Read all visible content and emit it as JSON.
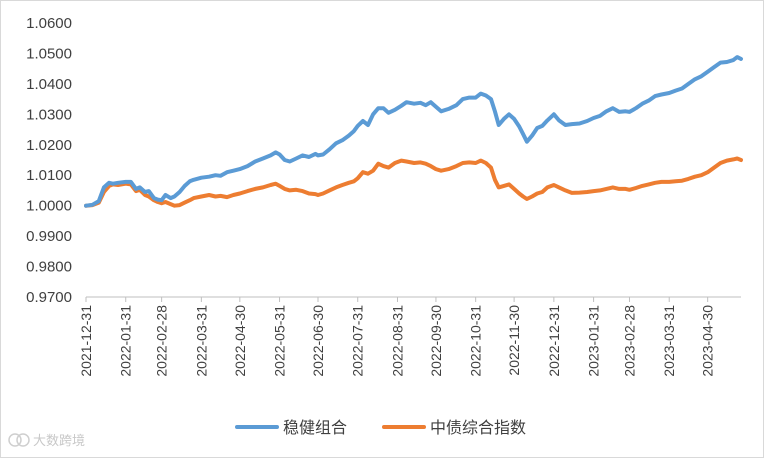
{
  "chart_data": {
    "type": "line",
    "title": "",
    "xlabel": "",
    "ylabel": "",
    "ylim": [
      0.97,
      1.06
    ],
    "y_ticks": [
      "1.0600",
      "1.0500",
      "1.0400",
      "1.0300",
      "1.0200",
      "1.0100",
      "1.0000",
      "0.9900",
      "0.9800",
      "0.9700"
    ],
    "y_tick_values": [
      1.06,
      1.05,
      1.04,
      1.03,
      1.02,
      1.01,
      1.0,
      0.99,
      0.98,
      0.97
    ],
    "x_ticks": [
      "2021-12-31",
      "2022-01-31",
      "2022-02-28",
      "2022-03-31",
      "2022-04-30",
      "2022-05-31",
      "2022-06-30",
      "2022-07-31",
      "2022-08-31",
      "2022-09-30",
      "2022-10-31",
      "2022-11-30",
      "2022-12-31",
      "2023-01-31",
      "2023-02-28",
      "2023-03-31",
      "2023-04-30"
    ],
    "x_end": "2023-05-26",
    "grid": false,
    "legend_position": "bottom",
    "series": [
      {
        "name": "稳健组合",
        "color": "#5b9bd5",
        "points": [
          [
            "2021-12-31",
            1.0
          ],
          [
            "2022-01-05",
            1.0003
          ],
          [
            "2022-01-10",
            1.0015
          ],
          [
            "2022-01-14",
            1.006
          ],
          [
            "2022-01-18",
            1.0075
          ],
          [
            "2022-01-21",
            1.0072
          ],
          [
            "2022-01-25",
            1.0075
          ],
          [
            "2022-01-31",
            1.0078
          ],
          [
            "2022-02-04",
            1.0078
          ],
          [
            "2022-02-08",
            1.0055
          ],
          [
            "2022-02-11",
            1.006
          ],
          [
            "2022-02-15",
            1.0045
          ],
          [
            "2022-02-18",
            1.0048
          ],
          [
            "2022-02-22",
            1.0025
          ],
          [
            "2022-02-25",
            1.002
          ],
          [
            "2022-02-28",
            1.0018
          ],
          [
            "2022-03-03",
            1.0035
          ],
          [
            "2022-03-07",
            1.0025
          ],
          [
            "2022-03-10",
            1.003
          ],
          [
            "2022-03-14",
            1.0045
          ],
          [
            "2022-03-18",
            1.0065
          ],
          [
            "2022-03-22",
            1.008
          ],
          [
            "2022-03-25",
            1.0085
          ],
          [
            "2022-03-31",
            1.0092
          ],
          [
            "2022-04-06",
            1.0095
          ],
          [
            "2022-04-11",
            1.01
          ],
          [
            "2022-04-15",
            1.0098
          ],
          [
            "2022-04-20",
            1.011
          ],
          [
            "2022-04-25",
            1.0115
          ],
          [
            "2022-04-30",
            1.012
          ],
          [
            "2022-05-06",
            1.013
          ],
          [
            "2022-05-12",
            1.0145
          ],
          [
            "2022-05-18",
            1.0155
          ],
          [
            "2022-05-24",
            1.0165
          ],
          [
            "2022-05-28",
            1.0175
          ],
          [
            "2022-05-31",
            1.0168
          ],
          [
            "2022-06-04",
            1.015
          ],
          [
            "2022-06-08",
            1.0145
          ],
          [
            "2022-06-13",
            1.0155
          ],
          [
            "2022-06-18",
            1.0165
          ],
          [
            "2022-06-23",
            1.016
          ],
          [
            "2022-06-28",
            1.017
          ],
          [
            "2022-06-30",
            1.0165
          ],
          [
            "2022-07-04",
            1.0168
          ],
          [
            "2022-07-09",
            1.0185
          ],
          [
            "2022-07-14",
            1.0205
          ],
          [
            "2022-07-19",
            1.0215
          ],
          [
            "2022-07-24",
            1.023
          ],
          [
            "2022-07-28",
            1.0245
          ],
          [
            "2022-07-31",
            1.0262
          ],
          [
            "2022-08-04",
            1.0278
          ],
          [
            "2022-08-08",
            1.0265
          ],
          [
            "2022-08-12",
            1.03
          ],
          [
            "2022-08-16",
            1.032
          ],
          [
            "2022-08-20",
            1.032
          ],
          [
            "2022-08-24",
            1.0305
          ],
          [
            "2022-08-29",
            1.0315
          ],
          [
            "2022-09-03",
            1.0328
          ],
          [
            "2022-09-07",
            1.034
          ],
          [
            "2022-09-13",
            1.0335
          ],
          [
            "2022-09-18",
            1.0338
          ],
          [
            "2022-09-22",
            1.033
          ],
          [
            "2022-09-26",
            1.034
          ],
          [
            "2022-09-30",
            1.0325
          ],
          [
            "2022-10-04",
            1.031
          ],
          [
            "2022-10-10",
            1.0318
          ],
          [
            "2022-10-16",
            1.033
          ],
          [
            "2022-10-21",
            1.035
          ],
          [
            "2022-10-26",
            1.0355
          ],
          [
            "2022-10-31",
            1.0355
          ],
          [
            "2022-11-04",
            1.0368
          ],
          [
            "2022-11-08",
            1.0362
          ],
          [
            "2022-11-12",
            1.035
          ],
          [
            "2022-11-15",
            1.031
          ],
          [
            "2022-11-18",
            1.0265
          ],
          [
            "2022-11-22",
            1.0285
          ],
          [
            "2022-11-26",
            1.03
          ],
          [
            "2022-11-30",
            1.0285
          ],
          [
            "2022-12-04",
            1.026
          ],
          [
            "2022-12-07",
            1.0235
          ],
          [
            "2022-12-10",
            1.021
          ],
          [
            "2022-12-14",
            1.023
          ],
          [
            "2022-12-18",
            1.0255
          ],
          [
            "2022-12-22",
            1.0262
          ],
          [
            "2022-12-26",
            1.028
          ],
          [
            "2022-12-31",
            1.03
          ],
          [
            "2023-01-04",
            1.028
          ],
          [
            "2023-01-09",
            1.0265
          ],
          [
            "2023-01-14",
            1.0268
          ],
          [
            "2023-01-20",
            1.027
          ],
          [
            "2023-01-26",
            1.0278
          ],
          [
            "2023-01-31",
            1.0288
          ],
          [
            "2023-02-05",
            1.0295
          ],
          [
            "2023-02-10",
            1.031
          ],
          [
            "2023-02-15",
            1.032
          ],
          [
            "2023-02-20",
            1.0308
          ],
          [
            "2023-02-25",
            1.031
          ],
          [
            "2023-02-28",
            1.0308
          ],
          [
            "2023-03-05",
            1.032
          ],
          [
            "2023-03-10",
            1.0335
          ],
          [
            "2023-03-15",
            1.0345
          ],
          [
            "2023-03-20",
            1.036
          ],
          [
            "2023-03-25",
            1.0365
          ],
          [
            "2023-03-31",
            1.037
          ],
          [
            "2023-04-05",
            1.0378
          ],
          [
            "2023-04-10",
            1.0385
          ],
          [
            "2023-04-15",
            1.04
          ],
          [
            "2023-04-20",
            1.0415
          ],
          [
            "2023-04-25",
            1.0425
          ],
          [
            "2023-04-30",
            1.044
          ],
          [
            "2023-05-05",
            1.0455
          ],
          [
            "2023-05-10",
            1.047
          ],
          [
            "2023-05-15",
            1.0472
          ],
          [
            "2023-05-20",
            1.0478
          ],
          [
            "2023-05-23",
            1.0488
          ],
          [
            "2023-05-26",
            1.0482
          ]
        ]
      },
      {
        "name": "中债综合指数",
        "color": "#ed7d31",
        "points": [
          [
            "2021-12-31",
            1.0
          ],
          [
            "2022-01-05",
            1.0002
          ],
          [
            "2022-01-10",
            1.001
          ],
          [
            "2022-01-14",
            1.0045
          ],
          [
            "2022-01-18",
            1.0065
          ],
          [
            "2022-01-21",
            1.007
          ],
          [
            "2022-01-25",
            1.0068
          ],
          [
            "2022-01-31",
            1.0072
          ],
          [
            "2022-02-04",
            1.007
          ],
          [
            "2022-02-08",
            1.0048
          ],
          [
            "2022-02-11",
            1.0052
          ],
          [
            "2022-02-15",
            1.0035
          ],
          [
            "2022-02-18",
            1.003
          ],
          [
            "2022-02-22",
            1.0018
          ],
          [
            "2022-02-25",
            1.0012
          ],
          [
            "2022-02-28",
            1.0008
          ],
          [
            "2022-03-03",
            1.0012
          ],
          [
            "2022-03-07",
            1.0005
          ],
          [
            "2022-03-10",
            1.0
          ],
          [
            "2022-03-14",
            1.0002
          ],
          [
            "2022-03-18",
            1.001
          ],
          [
            "2022-03-22",
            1.0018
          ],
          [
            "2022-03-25",
            1.0025
          ],
          [
            "2022-03-31",
            1.003
          ],
          [
            "2022-04-06",
            1.0035
          ],
          [
            "2022-04-11",
            1.003
          ],
          [
            "2022-04-15",
            1.0032
          ],
          [
            "2022-04-20",
            1.0028
          ],
          [
            "2022-04-25",
            1.0035
          ],
          [
            "2022-04-30",
            1.004
          ],
          [
            "2022-05-06",
            1.0048
          ],
          [
            "2022-05-12",
            1.0055
          ],
          [
            "2022-05-18",
            1.006
          ],
          [
            "2022-05-24",
            1.0068
          ],
          [
            "2022-05-28",
            1.0072
          ],
          [
            "2022-05-31",
            1.0065
          ],
          [
            "2022-06-04",
            1.0055
          ],
          [
            "2022-06-08",
            1.005
          ],
          [
            "2022-06-13",
            1.0052
          ],
          [
            "2022-06-18",
            1.0048
          ],
          [
            "2022-06-23",
            1.004
          ],
          [
            "2022-06-28",
            1.0038
          ],
          [
            "2022-06-30",
            1.0035
          ],
          [
            "2022-07-04",
            1.004
          ],
          [
            "2022-07-09",
            1.005
          ],
          [
            "2022-07-14",
            1.006
          ],
          [
            "2022-07-19",
            1.0068
          ],
          [
            "2022-07-24",
            1.0075
          ],
          [
            "2022-07-28",
            1.008
          ],
          [
            "2022-07-31",
            1.009
          ],
          [
            "2022-08-04",
            1.011
          ],
          [
            "2022-08-08",
            1.0105
          ],
          [
            "2022-08-12",
            1.0115
          ],
          [
            "2022-08-16",
            1.0138
          ],
          [
            "2022-08-20",
            1.013
          ],
          [
            "2022-08-24",
            1.0125
          ],
          [
            "2022-08-29",
            1.014
          ],
          [
            "2022-09-03",
            1.0148
          ],
          [
            "2022-09-07",
            1.0145
          ],
          [
            "2022-09-13",
            1.014
          ],
          [
            "2022-09-18",
            1.0142
          ],
          [
            "2022-09-22",
            1.0138
          ],
          [
            "2022-09-26",
            1.013
          ],
          [
            "2022-09-30",
            1.012
          ],
          [
            "2022-10-04",
            1.0115
          ],
          [
            "2022-10-10",
            1.012
          ],
          [
            "2022-10-16",
            1.013
          ],
          [
            "2022-10-21",
            1.014
          ],
          [
            "2022-10-26",
            1.0142
          ],
          [
            "2022-10-31",
            1.014
          ],
          [
            "2022-11-04",
            1.0148
          ],
          [
            "2022-11-08",
            1.014
          ],
          [
            "2022-11-12",
            1.0125
          ],
          [
            "2022-11-15",
            1.0085
          ],
          [
            "2022-11-18",
            1.006
          ],
          [
            "2022-11-22",
            1.0065
          ],
          [
            "2022-11-26",
            1.007
          ],
          [
            "2022-11-30",
            1.0055
          ],
          [
            "2022-12-04",
            1.004
          ],
          [
            "2022-12-07",
            1.003
          ],
          [
            "2022-12-10",
            1.0022
          ],
          [
            "2022-12-14",
            1.003
          ],
          [
            "2022-12-18",
            1.004
          ],
          [
            "2022-12-22",
            1.0045
          ],
          [
            "2022-12-26",
            1.006
          ],
          [
            "2022-12-31",
            1.0068
          ],
          [
            "2023-01-04",
            1.006
          ],
          [
            "2023-01-09",
            1.005
          ],
          [
            "2023-01-14",
            1.0042
          ],
          [
            "2023-01-20",
            1.0043
          ],
          [
            "2023-01-26",
            1.0045
          ],
          [
            "2023-01-31",
            1.0048
          ],
          [
            "2023-02-05",
            1.005
          ],
          [
            "2023-02-10",
            1.0055
          ],
          [
            "2023-02-15",
            1.006
          ],
          [
            "2023-02-20",
            1.0055
          ],
          [
            "2023-02-25",
            1.0055
          ],
          [
            "2023-02-28",
            1.0052
          ],
          [
            "2023-03-05",
            1.0058
          ],
          [
            "2023-03-10",
            1.0065
          ],
          [
            "2023-03-15",
            1.007
          ],
          [
            "2023-03-20",
            1.0075
          ],
          [
            "2023-03-25",
            1.0078
          ],
          [
            "2023-03-31",
            1.0078
          ],
          [
            "2023-04-05",
            1.008
          ],
          [
            "2023-04-10",
            1.0082
          ],
          [
            "2023-04-15",
            1.0088
          ],
          [
            "2023-04-20",
            1.0095
          ],
          [
            "2023-04-25",
            1.01
          ],
          [
            "2023-04-30",
            1.011
          ],
          [
            "2023-05-05",
            1.0125
          ],
          [
            "2023-05-10",
            1.014
          ],
          [
            "2023-05-15",
            1.0148
          ],
          [
            "2023-05-20",
            1.0152
          ],
          [
            "2023-05-23",
            1.0155
          ],
          [
            "2023-05-26",
            1.015
          ]
        ]
      }
    ]
  },
  "watermark": {
    "text": "大数跨境"
  }
}
